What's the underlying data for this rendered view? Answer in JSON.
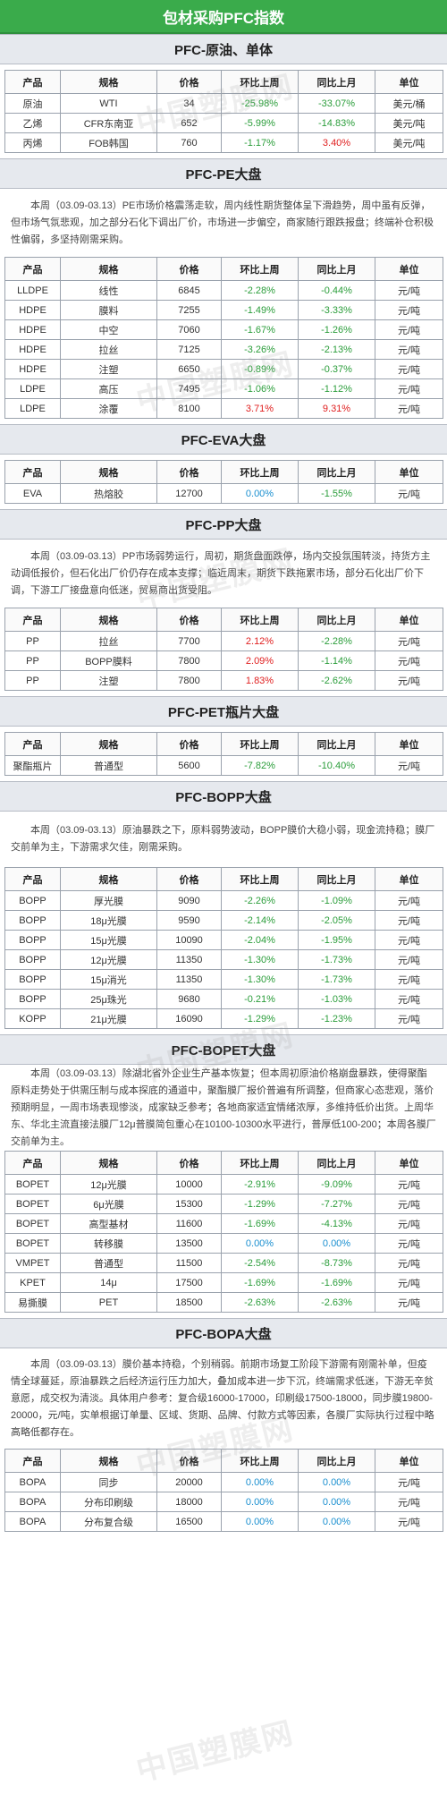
{
  "title": "包材采购PFC指数",
  "watermark": "中国塑膜网",
  "colors": {
    "title_bg": "#3aab4b",
    "section_bg": "#e6e9ee",
    "negative": "#2a9d3a",
    "positive": "#e02020",
    "zero": "#1a8fd0"
  },
  "headers": [
    "产品",
    "规格",
    "价格",
    "环比上周",
    "同比上月",
    "单位"
  ],
  "sections": [
    {
      "title": "PFC-原油、单体",
      "paragraph": "",
      "rows": [
        [
          "原油",
          "WTI",
          "34",
          "-25.98%",
          "-33.07%",
          "美元/桶"
        ],
        [
          "乙烯",
          "CFR东南亚",
          "652",
          "-5.99%",
          "-14.83%",
          "美元/吨"
        ],
        [
          "丙烯",
          "FOB韩国",
          "760",
          "-1.17%",
          "3.40%",
          "美元/吨"
        ]
      ]
    },
    {
      "title": "PFC-PE大盘",
      "paragraph": "本周（03.09-03.13）PE市场价格震荡走软，周内线性期货整体呈下滑趋势，周中虽有反弹，但市场气氛悲观，加之部分石化下调出厂价，市场进一步偏空，商家随行跟跌报盘；终端补仓积极性偏弱，多坚持刚需采购。",
      "rows": [
        [
          "LLDPE",
          "线性",
          "6845",
          "-2.28%",
          "-0.44%",
          "元/吨"
        ],
        [
          "HDPE",
          "膜料",
          "7255",
          "-1.49%",
          "-3.33%",
          "元/吨"
        ],
        [
          "HDPE",
          "中空",
          "7060",
          "-1.67%",
          "-1.26%",
          "元/吨"
        ],
        [
          "HDPE",
          "拉丝",
          "7125",
          "-3.26%",
          "-2.13%",
          "元/吨"
        ],
        [
          "HDPE",
          "注塑",
          "6650",
          "-0.89%",
          "-0.37%",
          "元/吨"
        ],
        [
          "LDPE",
          "高压",
          "7495",
          "-1.06%",
          "-1.12%",
          "元/吨"
        ],
        [
          "LDPE",
          "涂覆",
          "8100",
          "3.71%",
          "9.31%",
          "元/吨"
        ]
      ]
    },
    {
      "title": "PFC-EVA大盘",
      "paragraph": "",
      "rows": [
        [
          "EVA",
          "热熔胶",
          "12700",
          "0.00%",
          "-1.55%",
          "元/吨"
        ]
      ]
    },
    {
      "title": "PFC-PP大盘",
      "paragraph": "本周（03.09-03.13）PP市场弱势运行，周初，期货盘面跌停，场内交投氛围转淡，持货方主动调低报价，但石化出厂价仍存在成本支撑；临近周末，期货下跌拖累市场，部分石化出厂价下调，下游工厂接盘意向低迷，贸易商出货受阻。",
      "rows": [
        [
          "PP",
          "拉丝",
          "7700",
          "2.12%",
          "-2.28%",
          "元/吨"
        ],
        [
          "PP",
          "BOPP膜料",
          "7800",
          "2.09%",
          "-1.14%",
          "元/吨"
        ],
        [
          "PP",
          "注塑",
          "7800",
          "1.83%",
          "-2.62%",
          "元/吨"
        ]
      ]
    },
    {
      "title": "PFC-PET瓶片大盘",
      "paragraph": "",
      "rows": [
        [
          "聚酯瓶片",
          "普通型",
          "5600",
          "-7.82%",
          "-10.40%",
          "元/吨"
        ]
      ]
    },
    {
      "title": "PFC-BOPP大盘",
      "paragraph": "本周（03.09-03.13）原油暴跌之下，原料弱势波动，BOPP膜价大稳小弱，现金流持稳；膜厂交前单为主，下游需求欠佳，刚需采购。",
      "rows": [
        [
          "BOPP",
          "厚光膜",
          "9090",
          "-2.26%",
          "-1.09%",
          "元/吨"
        ],
        [
          "BOPP",
          "18μ光膜",
          "9590",
          "-2.14%",
          "-2.05%",
          "元/吨"
        ],
        [
          "BOPP",
          "15μ光膜",
          "10090",
          "-2.04%",
          "-1.95%",
          "元/吨"
        ],
        [
          "BOPP",
          "12μ光膜",
          "11350",
          "-1.30%",
          "-1.73%",
          "元/吨"
        ],
        [
          "BOPP",
          "15μ消光",
          "11350",
          "-1.30%",
          "-1.73%",
          "元/吨"
        ],
        [
          "BOPP",
          "25μ珠光",
          "9680",
          "-0.21%",
          "-1.03%",
          "元/吨"
        ],
        [
          "KOPP",
          "21μ光膜",
          "16090",
          "-1.29%",
          "-1.23%",
          "元/吨"
        ]
      ]
    },
    {
      "title": "PFC-BOPET大盘",
      "paragraph": "本周（03.09-03.13）除湖北省外企业生产基本恢复；但本周初原油价格崩盘暴跌，使得聚酯原料走势处于供需压制与成本探底的通道中，聚酯膜厂报价普遍有所调整，但商家心态悲观，落价预期明显，一周市场表现惨淡，成家缺乏参考；各地商家适宜情绪浓厚，多维持低价出货。上周华东、华北主流直接法膜厂12μ普膜简包重心在10100-10300水平进行，普厚低100-200；本周各膜厂交前单为主。",
      "rows": [
        [
          "BOPET",
          "12μ光膜",
          "10000",
          "-2.91%",
          "-9.09%",
          "元/吨"
        ],
        [
          "BOPET",
          "6μ光膜",
          "15300",
          "-1.29%",
          "-7.27%",
          "元/吨"
        ],
        [
          "BOPET",
          "高型基材",
          "11600",
          "-1.69%",
          "-4.13%",
          "元/吨"
        ],
        [
          "BOPET",
          "转移膜",
          "13500",
          "0.00%",
          "0.00%",
          "元/吨"
        ],
        [
          "VMPET",
          "普通型",
          "11500",
          "-2.54%",
          "-8.73%",
          "元/吨"
        ],
        [
          "KPET",
          "14μ",
          "17500",
          "-1.69%",
          "-1.69%",
          "元/吨"
        ],
        [
          "易撕膜",
          "PET",
          "18500",
          "-2.63%",
          "-2.63%",
          "元/吨"
        ]
      ]
    },
    {
      "title": "PFC-BOPA大盘",
      "paragraph": "本周（03.09-03.13）膜价基本持稳，个别稍弱。前期市场复工阶段下游需有刚需补单，但疫情全球蔓延，原油暴跌之后经济运行压力加大，叠加成本进一步下沉，终端需求低迷，下游无辛贫意愿，成交权为清淡。具体用户参考：复合级16000-17000，印刷级17500-18000，同步膜19800-20000，元/吨，实单根据订单量、区域、货期、品牌、付款方式等因素，各膜厂实际执行过程中略高略低都存在。",
      "rows": [
        [
          "BOPA",
          "同步",
          "20000",
          "0.00%",
          "0.00%",
          "元/吨"
        ],
        [
          "BOPA",
          "分布印刷级",
          "18000",
          "0.00%",
          "0.00%",
          "元/吨"
        ],
        [
          "BOPA",
          "分布复合级",
          "16500",
          "0.00%",
          "0.00%",
          "元/吨"
        ]
      ]
    }
  ]
}
